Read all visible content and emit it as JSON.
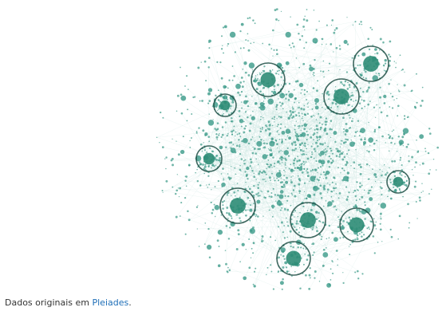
{
  "graph": {
    "colors": {
      "node": "#3a9a88",
      "hub": "#2e8c76",
      "ring": "#1f4f45",
      "edge": "#b9dcd4"
    },
    "hubs": [
      {
        "id": "hub-top-right"
      },
      {
        "id": "hub-upper-center"
      },
      {
        "id": "hub-right-upper"
      },
      {
        "id": "hub-left-middle"
      },
      {
        "id": "hub-left-lower"
      },
      {
        "id": "hub-center-lower"
      },
      {
        "id": "hub-right-lower"
      },
      {
        "id": "hub-bottom"
      },
      {
        "id": "hub-right-edge"
      },
      {
        "id": "hub-left-upper"
      }
    ]
  },
  "caption": {
    "prefix": "Dados originais em ",
    "link_text": "Pleiades",
    "suffix": "."
  }
}
